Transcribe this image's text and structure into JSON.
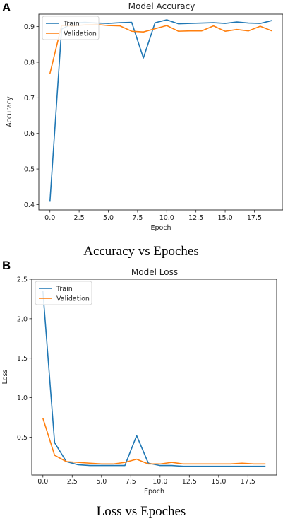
{
  "panels": [
    {
      "letter": "A",
      "caption": "Accuracy vs Epoches",
      "chart_data": {
        "type": "line",
        "title": "Model Accuracy",
        "xlabel": "Epoch",
        "ylabel": "Accuracy",
        "xlim": [
          -0.95,
          19.95
        ],
        "ylim": [
          0.385,
          0.935
        ],
        "xticks": [
          0.0,
          2.5,
          5.0,
          7.5,
          10.0,
          12.5,
          15.0,
          17.5
        ],
        "xtick_labels": [
          "0.0",
          "2.5",
          "5.0",
          "7.5",
          "10.0",
          "12.5",
          "15.0",
          "17.5"
        ],
        "yticks": [
          0.4,
          0.5,
          0.6,
          0.7,
          0.8,
          0.9
        ],
        "ytick_labels": [
          "0.4",
          "0.5",
          "0.6",
          "0.7",
          "0.8",
          "0.9"
        ],
        "legend_position": "upper-left",
        "grid": false,
        "x": [
          0,
          1,
          2,
          3,
          4,
          5,
          6,
          7,
          8,
          9,
          10,
          11,
          12,
          13,
          14,
          15,
          16,
          17,
          18,
          19
        ],
        "series": [
          {
            "name": "Train",
            "color": "#1f77b4",
            "values": [
              0.408,
              0.893,
              0.91,
              0.912,
              0.91,
              0.909,
              0.911,
              0.912,
              0.812,
              0.911,
              0.919,
              0.908,
              0.909,
              0.91,
              0.911,
              0.909,
              0.913,
              0.91,
              0.909,
              0.917
            ]
          },
          {
            "name": "Validation",
            "color": "#ff7f0e",
            "values": [
              0.768,
              0.903,
              0.902,
              0.905,
              0.906,
              0.903,
              0.902,
              0.887,
              0.885,
              0.894,
              0.903,
              0.887,
              0.888,
              0.888,
              0.902,
              0.887,
              0.892,
              0.888,
              0.901,
              0.888
            ]
          }
        ]
      }
    },
    {
      "letter": "B",
      "caption": "Loss vs Epoches",
      "chart_data": {
        "type": "line",
        "title": "Model Loss",
        "xlabel": "Epoch",
        "ylabel": "Loss",
        "xlim": [
          -0.95,
          19.95
        ],
        "ylim": [
          0.02,
          2.5
        ],
        "xticks": [
          0.0,
          2.5,
          5.0,
          7.5,
          10.0,
          12.5,
          15.0,
          17.5
        ],
        "xtick_labels": [
          "0.0",
          "2.5",
          "5.0",
          "7.5",
          "10.0",
          "12.5",
          "15.0",
          "17.5"
        ],
        "yticks": [
          0.5,
          1.0,
          1.5,
          2.0,
          2.5
        ],
        "ytick_labels": [
          "0.5",
          "1.0",
          "1.5",
          "2.0",
          "2.5"
        ],
        "legend_position": "upper-left",
        "grid": false,
        "x": [
          0,
          1,
          2,
          3,
          4,
          5,
          6,
          7,
          8,
          9,
          10,
          11,
          12,
          13,
          14,
          15,
          16,
          17,
          18,
          19
        ],
        "series": [
          {
            "name": "Train",
            "color": "#1f77b4",
            "values": [
              2.35,
              0.43,
              0.19,
              0.15,
              0.14,
              0.14,
              0.14,
              0.14,
              0.52,
              0.17,
              0.14,
              0.14,
              0.13,
              0.13,
              0.13,
              0.13,
              0.13,
              0.13,
              0.13,
              0.13
            ]
          },
          {
            "name": "Validation",
            "color": "#ff7f0e",
            "values": [
              0.74,
              0.27,
              0.19,
              0.18,
              0.17,
              0.16,
              0.16,
              0.18,
              0.22,
              0.16,
              0.16,
              0.18,
              0.16,
              0.16,
              0.16,
              0.16,
              0.16,
              0.17,
              0.16,
              0.16
            ]
          }
        ]
      }
    }
  ]
}
